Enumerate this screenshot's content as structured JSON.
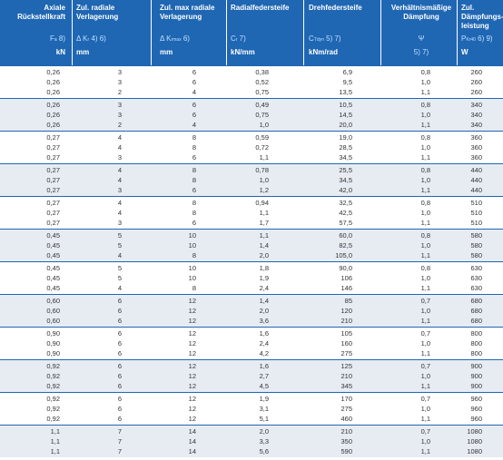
{
  "headers": [
    {
      "title": "Axiale\nRückstellkraft",
      "symbol": "F",
      "symbol_sub": "a",
      "refs": "8)",
      "unit": "kN"
    },
    {
      "title": "Zul. radiale\nVerlagerung",
      "symbol": "Δ K",
      "symbol_sub": "r",
      "refs": "4) 6)",
      "unit": "mm"
    },
    {
      "title": "Zul. max radiale\nVerlagerung",
      "symbol": "Δ K",
      "symbol_sub": "rmax",
      "refs": "6)",
      "unit": "mm"
    },
    {
      "title": "Radialfedersteife",
      "symbol": "C",
      "symbol_sub": "r",
      "refs": "7)",
      "unit": "kN/mm"
    },
    {
      "title": "Drehfedersteife",
      "symbol": "C",
      "symbol_sub": "Tdyn",
      "refs": "5) 7)",
      "unit": "kNm/rad"
    },
    {
      "title": "Verhältnismäßige\nDämpfung",
      "symbol": "Ψ",
      "symbol_sub": "",
      "refs": "",
      "unit": "",
      "unit_refs": "5) 7)"
    },
    {
      "title": "Zul. Dämpfungs-\nleistung",
      "symbol": "P",
      "symbol_sub": "Kr40",
      "refs": "6) 9)",
      "unit": "W"
    }
  ],
  "groups": [
    [
      [
        "0,26",
        "3",
        "6",
        "0,38",
        "6,9",
        "0,8",
        "260"
      ],
      [
        "0,26",
        "3",
        "6",
        "0,52",
        "9,5",
        "1,0",
        "260"
      ],
      [
        "0,26",
        "2",
        "4",
        "0,75",
        "13,5",
        "1,1",
        "260"
      ]
    ],
    [
      [
        "0,26",
        "3",
        "6",
        "0,49",
        "10,5",
        "0,8",
        "340"
      ],
      [
        "0,26",
        "3",
        "6",
        "0,75",
        "14,5",
        "1,0",
        "340"
      ],
      [
        "0,26",
        "2",
        "4",
        "1,0",
        "20,0",
        "1,1",
        "340"
      ]
    ],
    [
      [
        "0,27",
        "4",
        "8",
        "0,59",
        "19,0",
        "0,8",
        "360"
      ],
      [
        "0,27",
        "4",
        "8",
        "0,72",
        "28,5",
        "1,0",
        "360"
      ],
      [
        "0,27",
        "3",
        "6",
        "1,1",
        "34,5",
        "1,1",
        "360"
      ]
    ],
    [
      [
        "0,27",
        "4",
        "8",
        "0,78",
        "25,5",
        "0,8",
        "440"
      ],
      [
        "0,27",
        "4",
        "8",
        "1,0",
        "34,5",
        "1,0",
        "440"
      ],
      [
        "0,27",
        "3",
        "6",
        "1,2",
        "42,0",
        "1,1",
        "440"
      ]
    ],
    [
      [
        "0,27",
        "4",
        "8",
        "0,94",
        "32,5",
        "0,8",
        "510"
      ],
      [
        "0,27",
        "4",
        "8",
        "1,1",
        "42,5",
        "1,0",
        "510"
      ],
      [
        "0,27",
        "3",
        "6",
        "1,7",
        "57,5",
        "1,1",
        "510"
      ]
    ],
    [
      [
        "0,45",
        "5",
        "10",
        "1,1",
        "60,0",
        "0,8",
        "580"
      ],
      [
        "0,45",
        "5",
        "10",
        "1,4",
        "82,5",
        "1,0",
        "580"
      ],
      [
        "0,45",
        "4",
        "8",
        "2,0",
        "105,0",
        "1,1",
        "580"
      ]
    ],
    [
      [
        "0,45",
        "5",
        "10",
        "1,8",
        "90,0",
        "0,8",
        "630"
      ],
      [
        "0,45",
        "5",
        "10",
        "1,9",
        "106",
        "1,0",
        "630"
      ],
      [
        "0,45",
        "4",
        "8",
        "2,4",
        "146",
        "1,1",
        "630"
      ]
    ],
    [
      [
        "0,60",
        "6",
        "12",
        "1,4",
        "85",
        "0,7",
        "680"
      ],
      [
        "0,60",
        "6",
        "12",
        "2,0",
        "120",
        "1,0",
        "680"
      ],
      [
        "0,60",
        "6",
        "12",
        "3,6",
        "210",
        "1,1",
        "680"
      ]
    ],
    [
      [
        "0,90",
        "6",
        "12",
        "1,6",
        "105",
        "0,7",
        "800"
      ],
      [
        "0,90",
        "6",
        "12",
        "2,4",
        "160",
        "1,0",
        "800"
      ],
      [
        "0,90",
        "6",
        "12",
        "4,2",
        "275",
        "1,1",
        "800"
      ]
    ],
    [
      [
        "0,92",
        "6",
        "12",
        "1,6",
        "125",
        "0,7",
        "900"
      ],
      [
        "0,92",
        "6",
        "12",
        "2,7",
        "210",
        "1,0",
        "900"
      ],
      [
        "0,92",
        "6",
        "12",
        "4,5",
        "345",
        "1,1",
        "900"
      ]
    ],
    [
      [
        "0,92",
        "6",
        "12",
        "1,9",
        "170",
        "0,7",
        "960"
      ],
      [
        "0,92",
        "6",
        "12",
        "3,1",
        "275",
        "1,0",
        "960"
      ],
      [
        "0,92",
        "6",
        "12",
        "5,1",
        "460",
        "1,1",
        "960"
      ]
    ],
    [
      [
        "1,1",
        "7",
        "14",
        "2,0",
        "210",
        "0,7",
        "1080"
      ],
      [
        "1,1",
        "7",
        "14",
        "3,3",
        "350",
        "1,0",
        "1080"
      ],
      [
        "1,1",
        "7",
        "14",
        "5,6",
        "590",
        "1,1",
        "1080"
      ]
    ]
  ]
}
